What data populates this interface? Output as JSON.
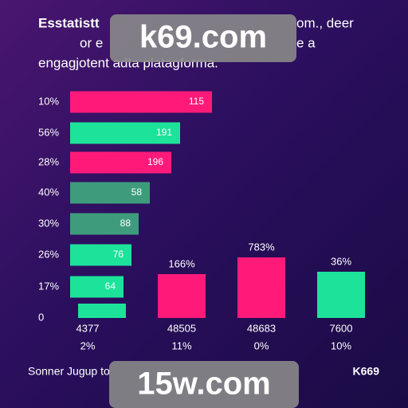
{
  "header": {
    "lines": [
      {
        "left": "Esstatistt",
        "right": "om., deer"
      },
      {
        "left": "or e",
        "right": "e a"
      },
      {
        "left": "engagjotent adta platagformа.",
        "right": ""
      }
    ]
  },
  "rows": [
    {
      "label": "10%",
      "bar_label": "115"
    },
    {
      "label": "56%",
      "bar_label": "191"
    },
    {
      "label": "28%",
      "bar_label": "196"
    },
    {
      "label": "40%",
      "bar_label": "58"
    },
    {
      "label": "30%",
      "bar_label": "88"
    },
    {
      "label": "26%",
      "bar_label": "76"
    },
    {
      "label": "17%",
      "bar_label": "64"
    },
    {
      "label": "0",
      "bar_label": ""
    }
  ],
  "columns": [
    {
      "top_label": "",
      "bottom_labels": [
        "4377",
        "2%"
      ]
    },
    {
      "top_label": "166%",
      "bottom_labels": [
        "48505",
        "11%"
      ]
    },
    {
      "top_label": "783%",
      "bottom_labels": [
        "48683",
        "0%"
      ]
    },
    {
      "top_label": "36%",
      "bottom_labels": [
        "7600",
        "10%"
      ]
    }
  ],
  "footer": {
    "left": "Sonner Jugup to",
    "right": "K669"
  },
  "watermarks": [
    "k69.com",
    "15w.com"
  ]
}
